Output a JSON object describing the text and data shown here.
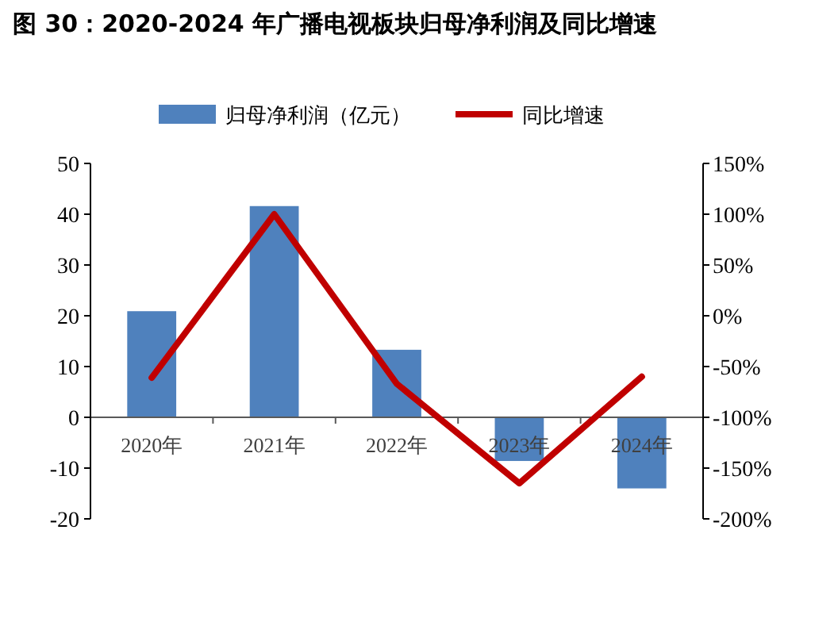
{
  "chart_data": {
    "type": "bar",
    "title": "图 30：2020-2024 年广播电视板块归母净利润及同比增速",
    "categories": [
      "2020年",
      "2021年",
      "2022年",
      "2023年",
      "2024年"
    ],
    "series": [
      {
        "name": "归母净利润（亿元）",
        "color": "#4f81bd",
        "values": [
          20.9,
          41.6,
          13.3,
          -8.6,
          -14.0
        ]
      },
      {
        "name": "同比增速",
        "type": "line",
        "axis": "y2",
        "color": "#c00000",
        "values": [
          -61,
          100,
          -67,
          -165,
          -60
        ]
      }
    ],
    "ylim": [
      -20,
      50
    ],
    "yticks": [
      -20,
      -10,
      0,
      10,
      20,
      30,
      40,
      50
    ],
    "y2lim": [
      -200,
      150
    ],
    "y2ticks": [
      {
        "value": -200,
        "label": "-200%"
      },
      {
        "value": -150,
        "label": "-150%"
      },
      {
        "value": -100,
        "label": "-100%"
      },
      {
        "value": -50,
        "label": "-50%"
      },
      {
        "value": 0,
        "label": "0%"
      },
      {
        "value": 50,
        "label": "50%"
      },
      {
        "value": 100,
        "label": "100%"
      },
      {
        "value": 150,
        "label": "150%"
      }
    ],
    "legend": "top",
    "grid": false
  }
}
